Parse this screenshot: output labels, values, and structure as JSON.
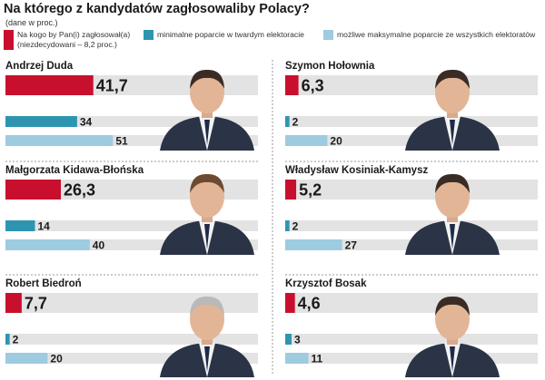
{
  "title": "Na którego z kandydatów zagłosowaliby Polacy?",
  "subtitle": "(dane w proc.)",
  "legend": [
    {
      "label": "Na kogo by Pan(i) zagłosował(a)",
      "label2": "(niezdecydowani – 8,2 proc.)",
      "color": "#c8102e"
    },
    {
      "label": "minimalne poparcie w twardym elektoracie",
      "color": "#2e95b0"
    },
    {
      "label": "możliwe maksymalne poparcie ze wszystkich elektoratów",
      "color": "#9dcbe0"
    }
  ],
  "colors": {
    "vote": "#c8102e",
    "min": "#2e95b0",
    "max": "#9dcbe0",
    "track": "#e3e3e3",
    "divider": "#9a9a9a"
  },
  "chart_data": {
    "type": "bar",
    "title": "Na którego z kandydatów zagłosowaliby Polacy?",
    "subtitle": "(dane w proc.)",
    "categories": [
      "Andrzej Duda",
      "Szymon Hołownia",
      "Małgorzata Kidawa-Błońska",
      "Władysław Kosiniak-Kamysz",
      "Robert Biedroń",
      "Krzysztof Bosak"
    ],
    "series": [
      {
        "name": "Na kogo by Pan(i) zagłosował(a)",
        "values": [
          41.7,
          6.3,
          26.3,
          5.2,
          7.7,
          4.6
        ],
        "labels": [
          "41,7",
          "6,3",
          "26,3",
          "5,2",
          "7,7",
          "4,6"
        ]
      },
      {
        "name": "minimalne poparcie w twardym elektoracie",
        "values": [
          34,
          2,
          14,
          2,
          2,
          3
        ],
        "labels": [
          "34",
          "2",
          "14",
          "2",
          "2",
          "3"
        ]
      },
      {
        "name": "możliwe maksymalne poparcie ze wszystkich elektoratów",
        "values": [
          51,
          20,
          40,
          27,
          20,
          11
        ],
        "labels": [
          "51",
          "20",
          "40",
          "27",
          "20",
          "11"
        ]
      }
    ],
    "annotation": "niezdecydowani – 8,2 proc.",
    "xlim": [
      0,
      100
    ]
  }
}
